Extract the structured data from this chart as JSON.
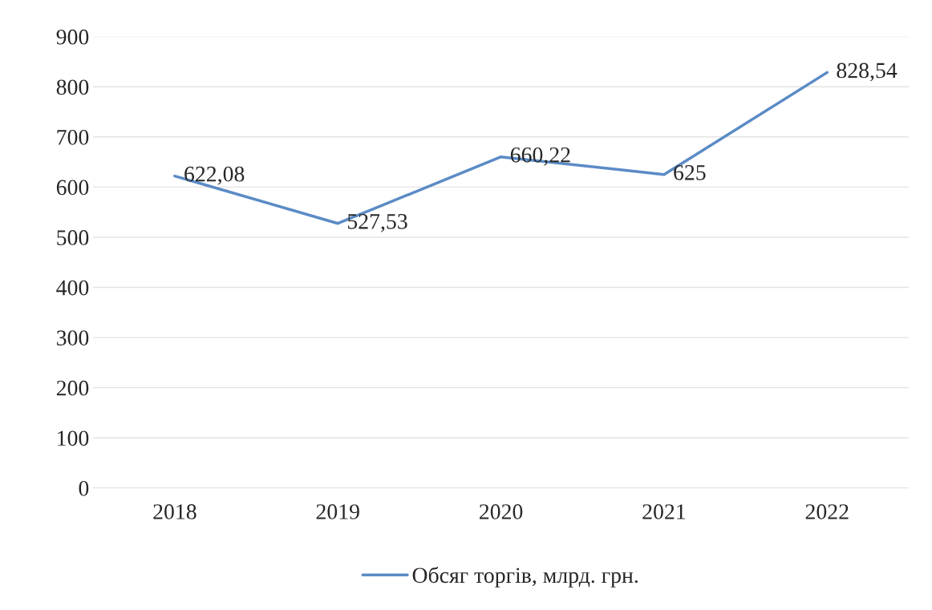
{
  "chart_data": {
    "type": "line",
    "categories": [
      "2018",
      "2019",
      "2020",
      "2021",
      "2022"
    ],
    "series": [
      {
        "name": "Обсяг торгів, млрд. грн.",
        "color": "#5b8bc6",
        "values": [
          622.08,
          527.53,
          660.22,
          625,
          828.54
        ],
        "value_labels": [
          "622,08",
          "527,53",
          "660,22",
          "625",
          "828,54"
        ]
      }
    ],
    "ylim": [
      0,
      900
    ],
    "yticks": [
      0,
      100,
      200,
      300,
      400,
      500,
      600,
      700,
      800,
      900
    ],
    "grid": "y",
    "legend": "bottom",
    "marker": "none",
    "line_style": "solid"
  }
}
